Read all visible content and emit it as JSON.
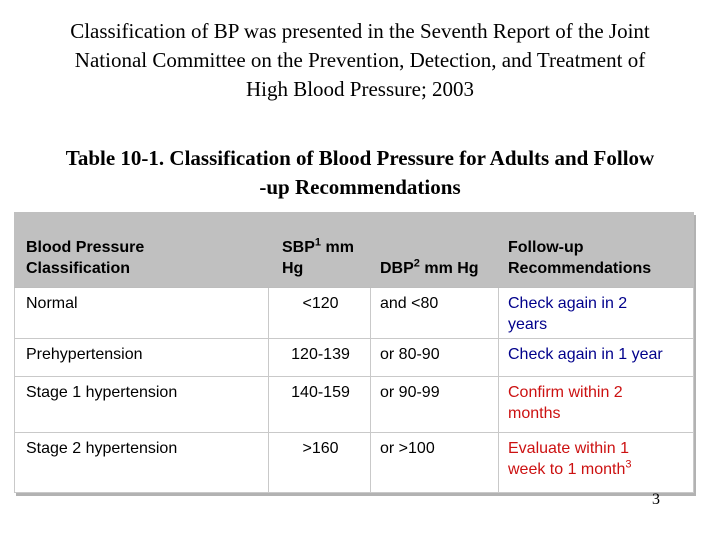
{
  "slide": {
    "title_lines": [
      "Classification of BP was presented in the Seventh Report of the Joint",
      "National Committee on the Prevention, Detection, and Treatment of",
      "High Blood Pressure; 2003"
    ],
    "heading_lines": [
      "Table 10-1. Classification of Blood Pressure for Adults and Follow",
      "-up Recommendations"
    ],
    "page_number": "3"
  },
  "table": {
    "header": {
      "classification_line1": "Blood Pressure",
      "classification_line2": "Classification",
      "sbp_pre": "SBP",
      "sbp_sup": "1",
      "sbp_post": " mm",
      "sbp_line2": "Hg",
      "dbp_pre": "DBP",
      "dbp_sup": "2",
      "dbp_post": " mm Hg",
      "rec_line1": "Follow-up",
      "rec_line2": "Recommendations"
    },
    "rows": [
      {
        "classification": "Normal",
        "sbp": "<120",
        "dbp": "and <80",
        "rec_lines": [
          "Check again in 2",
          "years"
        ]
      },
      {
        "classification": "Prehypertension",
        "sbp": "120-139",
        "dbp": "or 80-90",
        "rec_lines": [
          "Check again in 1 year"
        ]
      },
      {
        "classification": "Stage 1 hypertension",
        "sbp": "140-159",
        "dbp": "or 90-99",
        "rec_lines": [
          "Confirm within 2",
          "months"
        ]
      },
      {
        "classification": "Stage 2 hypertension",
        "sbp": ">160",
        "dbp": "or >100",
        "rec_lines": [
          "Evaluate within 1",
          "week to 1 month"
        ],
        "rec_sup": "3"
      }
    ]
  },
  "colors": {
    "background": "#ffffff",
    "text": "#000000",
    "header_background": "#c0c0c0",
    "table_border": "#c9c9c9",
    "table_outer_shadow": "#b2b2b2",
    "recommendation_blue": "#00008b",
    "recommendation_red": "#cc1111"
  }
}
